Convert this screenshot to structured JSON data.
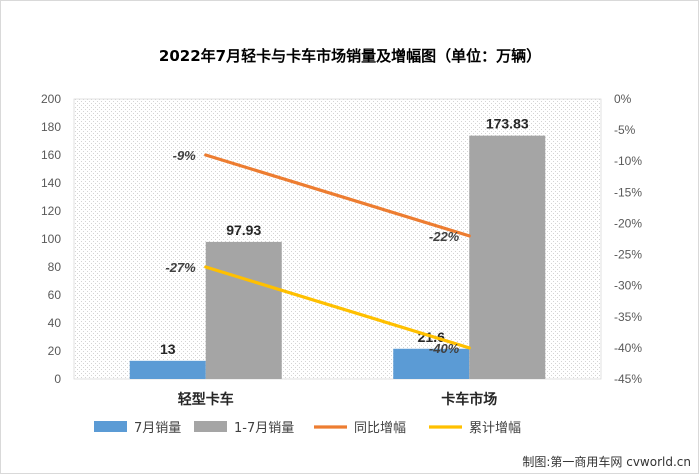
{
  "chart_data": {
    "type": "bar",
    "title": "2022年7月轻卡与卡车市场销量及增幅图（单位：万辆）",
    "categories": [
      "轻型卡车",
      "卡车市场"
    ],
    "series": [
      {
        "name": "7月销量",
        "kind": "bar",
        "axis": "left",
        "values": [
          13,
          21.6
        ],
        "labels": [
          "13",
          "21.6"
        ],
        "color": "#5b9bd5"
      },
      {
        "name": "1-7月销量",
        "kind": "bar",
        "axis": "left",
        "values": [
          97.93,
          173.83
        ],
        "labels": [
          "97.93",
          "173.83"
        ],
        "color": "#a5a5a5"
      },
      {
        "name": "同比增幅",
        "kind": "line",
        "axis": "right",
        "values": [
          -9,
          -22
        ],
        "labels": [
          "-9%",
          "-22%"
        ],
        "color": "#ed7d31"
      },
      {
        "name": "累计增幅",
        "kind": "line",
        "axis": "right",
        "values": [
          -27,
          -40
        ],
        "labels": [
          "-27%",
          "-40%"
        ],
        "color": "#ffc000"
      }
    ],
    "ylim_left": [
      0,
      200
    ],
    "yticks_left": [
      "0",
      "20",
      "40",
      "60",
      "80",
      "100",
      "120",
      "140",
      "160",
      "180",
      "200"
    ],
    "ylim_right": [
      -45,
      0
    ],
    "yticks_right": [
      "-45%",
      "-40%",
      "-35%",
      "-30%",
      "-25%",
      "-20%",
      "-15%",
      "-10%",
      "-5%",
      "0%"
    ],
    "grid": false,
    "legend_position": "bottom"
  },
  "credit": "制图:第一商用车网 cvworld.cn"
}
